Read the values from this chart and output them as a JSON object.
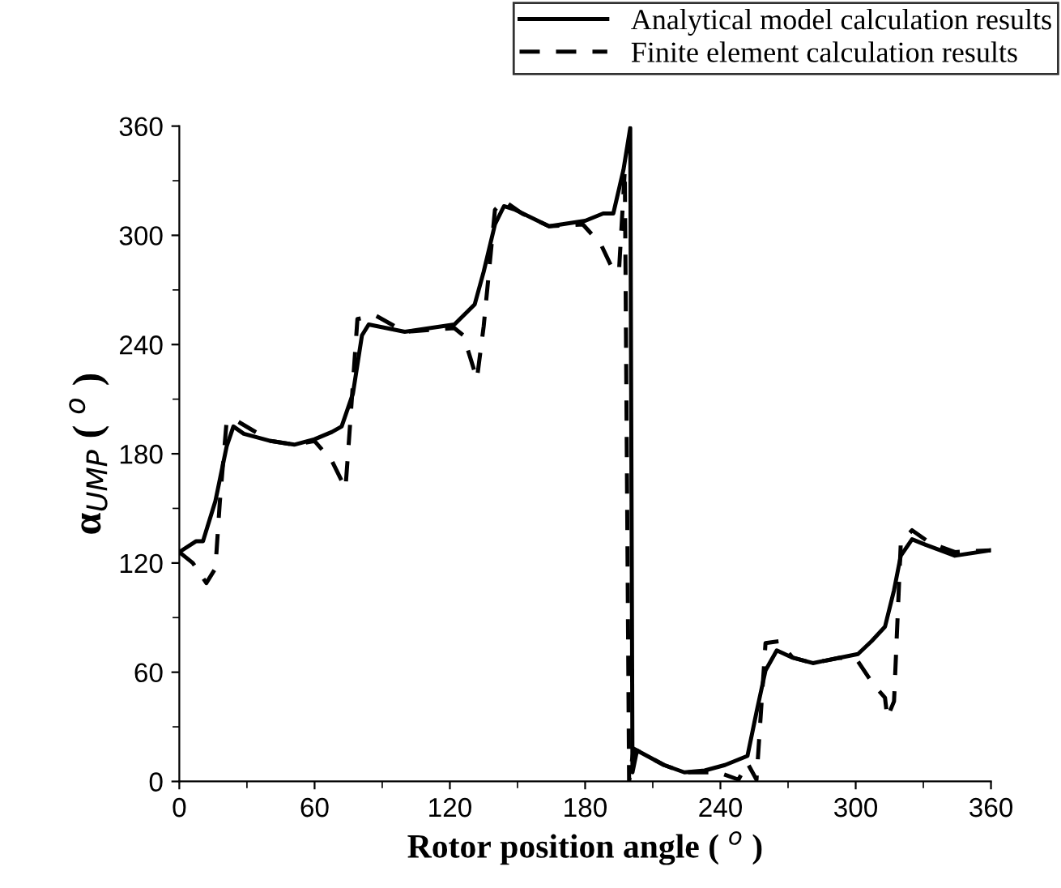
{
  "chart_data": {
    "type": "line",
    "xlabel": "Rotor position angle ( $^{o}$ )",
    "ylabel": "α$_{UMP}$ ( $^{o}$ )",
    "xlim": [
      0,
      360
    ],
    "ylim": [
      0,
      360
    ],
    "xticks": [
      0,
      60,
      120,
      180,
      240,
      300,
      360
    ],
    "yticks": [
      0,
      60,
      120,
      180,
      240,
      300,
      360
    ],
    "grid": false,
    "legend": "top right",
    "series": [
      {
        "name": "Analytical model calculation results",
        "color": "#000000",
        "line_style": "solid",
        "x": [
          0,
          7.5,
          10.5,
          16,
          21,
          24,
          28.6,
          40.6,
          51,
          60,
          67.7,
          72,
          77,
          81,
          84,
          100,
          122,
          131,
          135,
          140,
          144,
          149,
          164,
          180,
          188,
          192.5,
          197,
          200,
          201,
          203,
          215,
          224,
          233,
          242,
          248,
          252,
          256,
          260,
          265,
          272,
          281,
          293,
          301,
          307,
          313,
          317,
          320,
          325,
          331,
          344,
          360
        ],
        "values": [
          126,
          132,
          132,
          154,
          184,
          195,
          191,
          187,
          185,
          188,
          192,
          195,
          213,
          245,
          251,
          247,
          251,
          262,
          280,
          306,
          316,
          314,
          305,
          308,
          312,
          312,
          336,
          359,
          5,
          17,
          9,
          5,
          6,
          9,
          12,
          14,
          38,
          61,
          72,
          68,
          65,
          68,
          70,
          77,
          85,
          105,
          124,
          133,
          130,
          124,
          127
        ]
      },
      {
        "name": "Finite element calculation results",
        "color": "#000000",
        "line_style": "dashed",
        "x": [
          0,
          6,
          12,
          16,
          18,
          21,
          25.6,
          40.6,
          51,
          60,
          67.7,
          73.7,
          75,
          79,
          87,
          100,
          122,
          126,
          132,
          135,
          140,
          144,
          152,
          164,
          179,
          187,
          192,
          195,
          197.6,
          199.5,
          201.5,
          215,
          224,
          239,
          248,
          252,
          256,
          260,
          266,
          272,
          281,
          293,
          301,
          308,
          313,
          314,
          317,
          320,
          325,
          333,
          344,
          360
        ],
        "values": [
          126,
          120,
          109,
          117,
          154,
          198,
          198,
          187,
          185,
          187,
          176,
          161,
          183,
          254,
          256,
          247,
          249,
          245,
          221,
          250,
          314,
          319,
          312,
          305,
          306,
          295,
          282,
          280,
          336,
          0,
          18,
          9,
          5,
          5,
          1,
          10,
          1,
          76,
          77,
          68,
          65,
          68,
          66,
          53,
          46,
          35,
          44,
          131,
          138,
          131,
          126,
          127
        ]
      }
    ]
  }
}
